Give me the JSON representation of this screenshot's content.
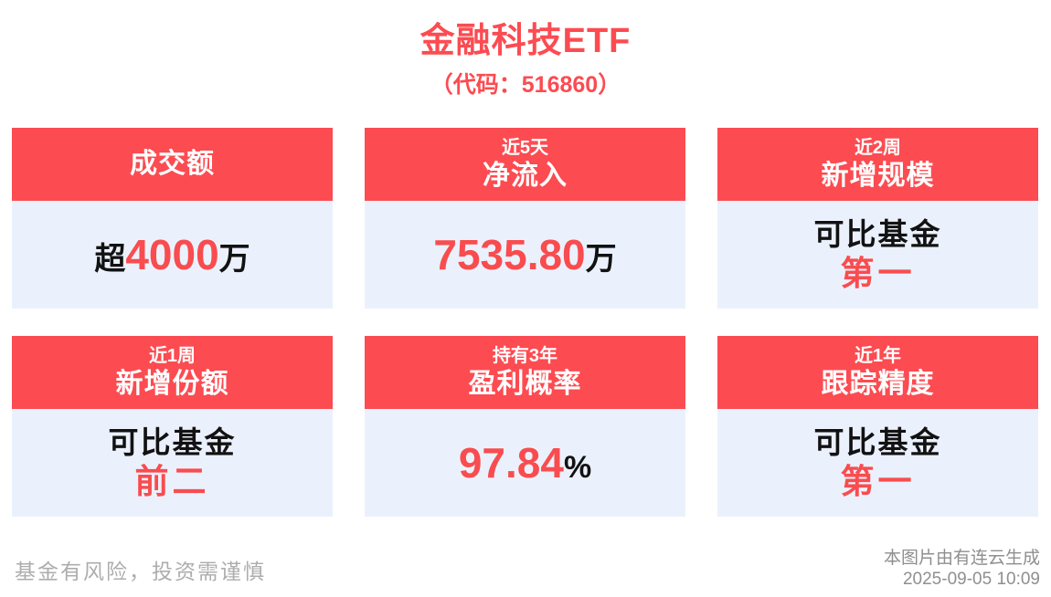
{
  "page": {
    "title": "金融科技ETF",
    "subtitle": "（代码：516860）",
    "footer_left": "基金有风险，投资需谨慎",
    "footer_right_line1": "本图片由有连云生成",
    "footer_right_line2": "2025-09-05 10:09"
  },
  "colors": {
    "accent_red": "#FC4B51",
    "value_red": "#F94C4F",
    "card_body_bg": "#EBF1FC",
    "text_black": "#121212",
    "footer_gray_left": "#ADADAD",
    "footer_gray_right": "#8F8F8F"
  },
  "cards": [
    {
      "header_main": "成交额",
      "value_prefix": "超",
      "value_em": "4000",
      "value_suffix": "万"
    },
    {
      "header_small": "近5天",
      "header_main": "净流入",
      "value_prefix": "",
      "value_em": "7535.80",
      "value_suffix": "万"
    },
    {
      "header_small": "近2周",
      "header_main": "新增规模",
      "line1": "可比基金",
      "line2": "第一"
    },
    {
      "header_small": "近1周",
      "header_main": "新增份额",
      "line1": "可比基金",
      "line2": "前二"
    },
    {
      "header_small": "持有3年",
      "header_main": "盈利概率",
      "value_prefix": "",
      "value_em": "97.84",
      "value_suffix": "%"
    },
    {
      "header_small": "近1年",
      "header_main": "跟踪精度",
      "line1": "可比基金",
      "line2": "第一"
    }
  ]
}
